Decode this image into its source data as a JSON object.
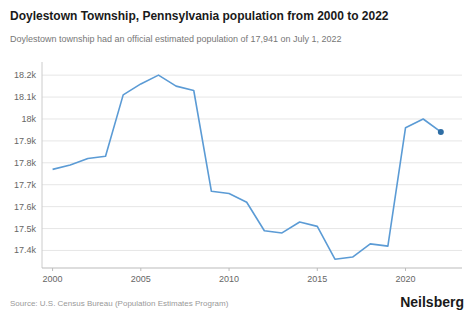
{
  "chart_data": {
    "type": "line",
    "title": "Doylestown Township, Pennsylvania population from 2000 to 2022",
    "subtitle": "Doylestown township had an official estimated population of 17,941 on July 1, 2022",
    "source": "Source: U.S. Census Bureau (Population Estimates Program)",
    "watermark": "Neilsberg",
    "x": [
      2000,
      2001,
      2002,
      2003,
      2004,
      2005,
      2006,
      2007,
      2008,
      2009,
      2010,
      2011,
      2012,
      2013,
      2014,
      2015,
      2016,
      2017,
      2018,
      2019,
      2020,
      2021,
      2022
    ],
    "series": [
      {
        "type": "line",
        "color": "#5b9bd5",
        "values": [
          17770,
          17790,
          17820,
          17830,
          18110,
          18160,
          18200,
          18150,
          18130,
          17670,
          17660,
          17620,
          17490,
          17480,
          17530,
          17510,
          17360,
          17370,
          17430,
          17420,
          17960,
          18000,
          17941
        ]
      },
      {
        "type": "scatter",
        "color": "#2e6da4",
        "values": [
          null,
          null,
          null,
          null,
          null,
          null,
          null,
          null,
          null,
          null,
          null,
          null,
          null,
          null,
          null,
          null,
          null,
          null,
          null,
          null,
          null,
          null,
          17941
        ]
      }
    ],
    "xlim": [
      1999.4,
      2023.2
    ],
    "ylim": [
      17320,
      18260
    ],
    "xticks": [
      2000,
      2005,
      2010,
      2015,
      2020
    ],
    "yticks": [
      {
        "value": 17400,
        "label": "17.4k"
      },
      {
        "value": 17500,
        "label": "17.5k"
      },
      {
        "value": 17600,
        "label": "17.6k"
      },
      {
        "value": 17700,
        "label": "17.7k"
      },
      {
        "value": 17800,
        "label": "17.8k"
      },
      {
        "value": 17900,
        "label": "17.9k"
      },
      {
        "value": 18000,
        "label": "18k"
      },
      {
        "value": 18100,
        "label": "18.1k"
      },
      {
        "value": 18200,
        "label": "18.2k"
      }
    ],
    "grid": true
  }
}
